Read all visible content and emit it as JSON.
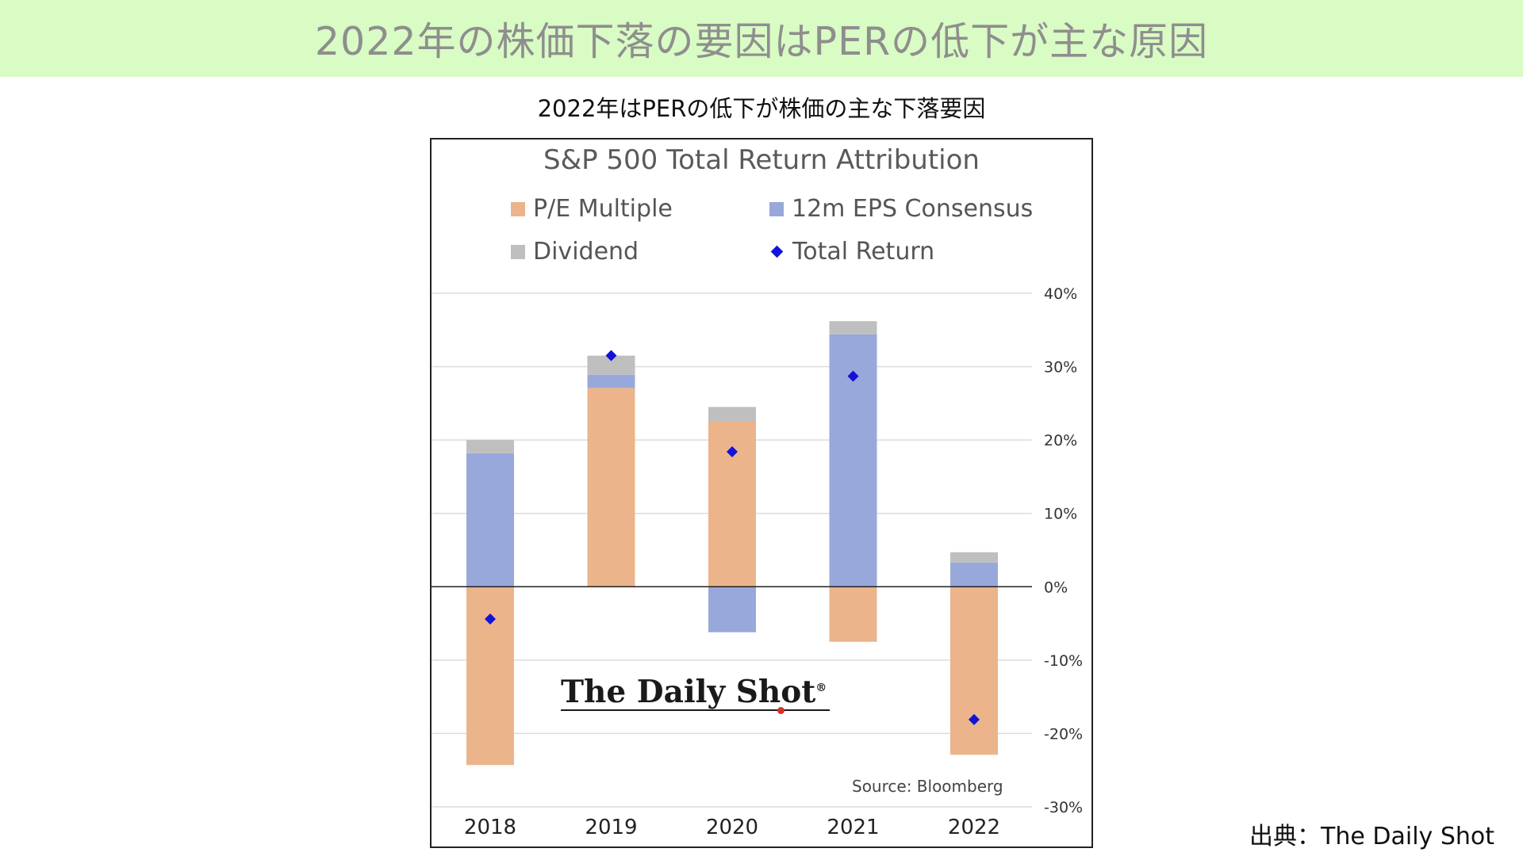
{
  "page": {
    "banner_title": "2022年の株価下落の要因はPERの低下が主な原因",
    "subtitle": "2022年はPERの低下が株価の主な下落要因",
    "credit": "出典：The Daily Shot"
  },
  "colors": {
    "banner_bg": "#d9fbc4",
    "pe": "#ebb48b",
    "eps": "#98a8da",
    "dividend": "#bfbfbf",
    "total": "#1212d8"
  },
  "chart_data": {
    "type": "bar",
    "stacked": true,
    "title": "S&P 500 Total Return Attribution",
    "categories": [
      "2018",
      "2019",
      "2020",
      "2021",
      "2022"
    ],
    "series": [
      {
        "name": "P/E Multiple",
        "kind": "bar",
        "color": "#ebb48b",
        "values": [
          -24.3,
          27.1,
          22.5,
          -7.5,
          -22.9
        ]
      },
      {
        "name": "12m EPS Consensus",
        "kind": "bar",
        "color": "#98a8da",
        "values": [
          18.2,
          1.8,
          -6.2,
          34.4,
          3.3
        ]
      },
      {
        "name": "Dividend",
        "kind": "bar",
        "color": "#bfbfbf",
        "values": [
          1.8,
          2.6,
          2.0,
          1.8,
          1.4
        ]
      },
      {
        "name": "Total Return",
        "kind": "marker",
        "color": "#1212d8",
        "values": [
          -4.4,
          31.5,
          18.4,
          28.7,
          -18.1
        ]
      }
    ],
    "y_axis": {
      "min": -30,
      "max": 40,
      "step": 10,
      "ticks": [
        "40%",
        "30%",
        "20%",
        "10%",
        "0%",
        "-10%",
        "-20%",
        "-30%"
      ],
      "position": "right"
    },
    "gridlines": true,
    "legend_position": "top",
    "watermark": "The Daily Shot",
    "source_note": "Source: Bloomberg"
  }
}
